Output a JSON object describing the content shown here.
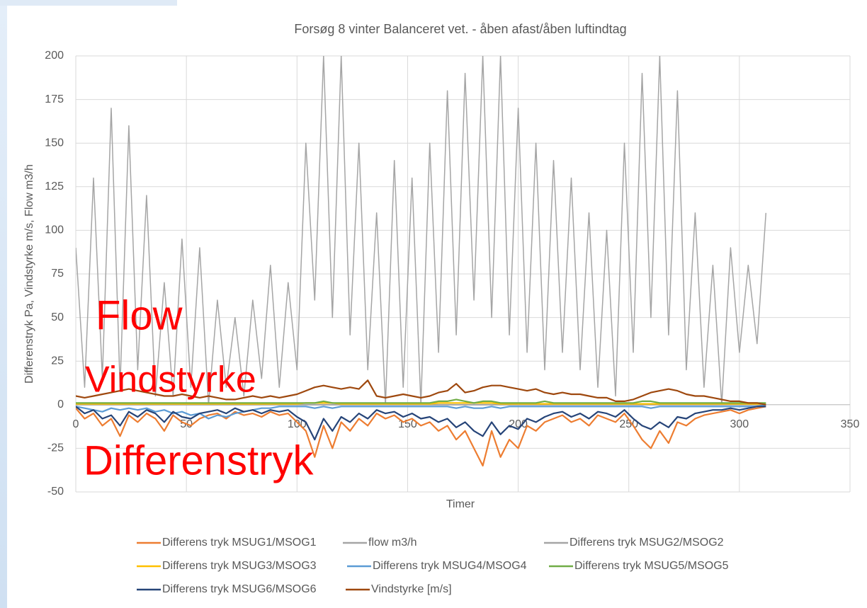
{
  "chart_data": {
    "type": "line",
    "title": "Forsøg 8 vinter Balanceret vet. - åben afast/åben luftindtag",
    "x_label": "Timer",
    "y_label": "Differenstryk Pa, Vindstyrke m/s, Flow m3/h",
    "annotations": [
      "Flow",
      "Vindstyrke",
      "Differenstryk"
    ],
    "annotation_color": "#ff0000",
    "xlim": [
      0,
      350
    ],
    "xticks": [
      0,
      50,
      100,
      150,
      200,
      250,
      300,
      350
    ],
    "ylim": [
      -50,
      200
    ],
    "yticks": [
      -50,
      -25,
      0,
      25,
      50,
      75,
      100,
      125,
      150,
      175,
      200
    ],
    "grid": true,
    "x": [
      0,
      4,
      8,
      12,
      16,
      20,
      24,
      28,
      32,
      36,
      40,
      44,
      48,
      52,
      56,
      60,
      64,
      68,
      72,
      76,
      80,
      84,
      88,
      92,
      96,
      100,
      104,
      108,
      112,
      116,
      120,
      124,
      128,
      132,
      136,
      140,
      144,
      148,
      152,
      156,
      160,
      164,
      168,
      172,
      176,
      180,
      184,
      188,
      192,
      196,
      200,
      204,
      208,
      212,
      216,
      220,
      224,
      228,
      232,
      236,
      240,
      244,
      248,
      252,
      256,
      260,
      264,
      268,
      272,
      276,
      280,
      284,
      288,
      292,
      296,
      300,
      304,
      308,
      312
    ],
    "series": [
      {
        "name": "Differens tryk MSUG1/MSOG1",
        "color": "#ed7d31",
        "values": [
          -2,
          -8,
          -5,
          -12,
          -8,
          -18,
          -6,
          -10,
          -5,
          -8,
          -15,
          -6,
          -10,
          -12,
          -8,
          -6,
          -5,
          -8,
          -4,
          -6,
          -5,
          -7,
          -4,
          -6,
          -5,
          -10,
          -15,
          -30,
          -12,
          -25,
          -10,
          -15,
          -8,
          -12,
          -5,
          -8,
          -6,
          -10,
          -8,
          -12,
          -10,
          -15,
          -12,
          -20,
          -15,
          -25,
          -35,
          -15,
          -30,
          -20,
          -25,
          -12,
          -15,
          -10,
          -8,
          -6,
          -10,
          -8,
          -12,
          -6,
          -8,
          -10,
          -5,
          -12,
          -20,
          -25,
          -15,
          -22,
          -10,
          -12,
          -8,
          -6,
          -5,
          -4,
          -3,
          -5,
          -3,
          -2,
          -1
        ]
      },
      {
        "name": "flow m3/h",
        "color": "#a5a5a5",
        "values": [
          90,
          10,
          130,
          15,
          170,
          10,
          160,
          20,
          120,
          5,
          70,
          5,
          95,
          10,
          90,
          0,
          60,
          10,
          50,
          5,
          60,
          15,
          80,
          10,
          70,
          20,
          150,
          60,
          200,
          50,
          200,
          40,
          150,
          20,
          110,
          0,
          140,
          10,
          130,
          0,
          150,
          30,
          180,
          40,
          190,
          60,
          200,
          50,
          200,
          40,
          170,
          30,
          150,
          20,
          140,
          30,
          130,
          20,
          110,
          10,
          100,
          5,
          150,
          30,
          190,
          50,
          200,
          40,
          180,
          20,
          110,
          10,
          80,
          0,
          90,
          30,
          80,
          35,
          110
        ]
      },
      {
        "name": "Differens tryk MSUG2/MSOG2",
        "color": "#a5a5a5",
        "values": [
          0,
          0,
          0,
          0,
          0,
          0,
          0,
          0,
          0,
          0,
          0,
          0,
          0,
          0,
          0,
          0,
          0,
          0,
          0,
          0,
          0,
          0,
          0,
          0,
          0,
          0,
          0,
          0,
          0,
          0,
          0,
          0,
          0,
          0,
          0,
          0,
          0,
          0,
          0,
          0,
          0,
          0,
          0,
          0,
          0,
          0,
          0,
          0,
          0,
          0,
          0,
          0,
          0,
          0,
          0,
          0,
          0,
          0,
          0,
          0,
          0,
          0,
          0,
          0,
          0,
          0,
          0,
          0,
          0,
          0,
          0,
          0,
          0,
          0,
          0,
          0,
          0,
          0,
          0
        ]
      },
      {
        "name": "Differens tryk MSUG3/MSOG3",
        "color": "#ffc000",
        "values": [
          0.5,
          0.5,
          0.5,
          0.5,
          0.5,
          0.5,
          0.5,
          0.5,
          0.5,
          0.5,
          0.5,
          0.5,
          0.5,
          0.5,
          0.5,
          0.5,
          0.5,
          0.5,
          0.5,
          0.5,
          0.5,
          0.5,
          0.5,
          0.5,
          0.5,
          0.5,
          1,
          1,
          1,
          1,
          0.5,
          0.5,
          0.5,
          0.5,
          0.5,
          0.5,
          0.5,
          0.5,
          0.5,
          0.5,
          0.5,
          1,
          1,
          1,
          1,
          1,
          1,
          1,
          0.5,
          0.5,
          0.5,
          0.5,
          0.5,
          0.5,
          0.5,
          0.5,
          0.5,
          0.5,
          0.5,
          0.5,
          0.5,
          0.5,
          0.5,
          0.5,
          0.5,
          0.5,
          0.5,
          0.5,
          0.5,
          0.5,
          0.5,
          0.5,
          0.5,
          0.5,
          0.5,
          0.5,
          0.5,
          0.5,
          0.5
        ]
      },
      {
        "name": "Differens tryk MSUG4/MSOG4",
        "color": "#5b9bd5",
        "values": [
          -1,
          -2,
          -3,
          -4,
          -2,
          -3,
          -2,
          -3,
          -2,
          -4,
          -3,
          -5,
          -4,
          -6,
          -5,
          -8,
          -6,
          -7,
          -5,
          -4,
          -3,
          -2,
          -2,
          -1,
          -1,
          -1,
          -1,
          -2,
          -1,
          -2,
          -1,
          -1,
          -1,
          -1,
          -1,
          -1,
          -1,
          -1,
          -1,
          -1,
          -1,
          -1,
          -1,
          -2,
          -1,
          -2,
          -2,
          -1,
          -2,
          -1,
          -1,
          -1,
          -1,
          -1,
          -1,
          -1,
          -1,
          -1,
          -1,
          -1,
          -1,
          -1,
          -1,
          -1,
          -1,
          -2,
          -1,
          -1,
          -1,
          -1,
          -1,
          -1,
          -1,
          -1,
          -1,
          -1,
          -1,
          -1,
          0
        ]
      },
      {
        "name": "Differens tryk MSUG5/MSOG5",
        "color": "#70ad47",
        "values": [
          1,
          1,
          1,
          1,
          1,
          1,
          1,
          1,
          1,
          1,
          1,
          1,
          1,
          1,
          1,
          1,
          1,
          1,
          1,
          1,
          1,
          1,
          1,
          1,
          1,
          1,
          1,
          1,
          2,
          1,
          1,
          1,
          1,
          1,
          1,
          1,
          1,
          1,
          1,
          1,
          1,
          2,
          2,
          3,
          2,
          1,
          2,
          2,
          1,
          1,
          1,
          1,
          1,
          2,
          1,
          1,
          1,
          1,
          1,
          1,
          1,
          1,
          1,
          1,
          2,
          2,
          1,
          1,
          1,
          1,
          1,
          1,
          1,
          1,
          1,
          1,
          1,
          1,
          1
        ]
      },
      {
        "name": "Differens tryk MSUG6/MSOG6",
        "color": "#264478",
        "values": [
          -1,
          -5,
          -3,
          -8,
          -6,
          -12,
          -4,
          -7,
          -3,
          -5,
          -10,
          -4,
          -7,
          -8,
          -5,
          -4,
          -3,
          -5,
          -2,
          -4,
          -3,
          -5,
          -3,
          -4,
          -3,
          -7,
          -10,
          -20,
          -8,
          -15,
          -7,
          -10,
          -5,
          -8,
          -3,
          -5,
          -4,
          -7,
          -5,
          -8,
          -7,
          -10,
          -8,
          -13,
          -10,
          -15,
          -18,
          -10,
          -17,
          -12,
          -14,
          -8,
          -10,
          -7,
          -5,
          -4,
          -7,
          -5,
          -8,
          -4,
          -5,
          -7,
          -3,
          -8,
          -12,
          -14,
          -10,
          -13,
          -7,
          -8,
          -5,
          -4,
          -3,
          -3,
          -2,
          -3,
          -2,
          -1,
          -1
        ]
      },
      {
        "name": "Vindstyrke [m/s]",
        "color": "#9e480e",
        "values": [
          5,
          4,
          5,
          6,
          7,
          8,
          9,
          8,
          7,
          6,
          5,
          5,
          6,
          5,
          4,
          5,
          4,
          3,
          3,
          4,
          5,
          4,
          5,
          4,
          5,
          6,
          8,
          10,
          11,
          10,
          9,
          10,
          9,
          14,
          5,
          4,
          5,
          6,
          5,
          4,
          5,
          7,
          8,
          12,
          7,
          8,
          10,
          11,
          11,
          10,
          9,
          8,
          9,
          7,
          6,
          7,
          6,
          6,
          5,
          4,
          4,
          2,
          2,
          3,
          5,
          7,
          8,
          9,
          8,
          6,
          5,
          5,
          4,
          3,
          2,
          2,
          1,
          1,
          0
        ]
      }
    ]
  }
}
